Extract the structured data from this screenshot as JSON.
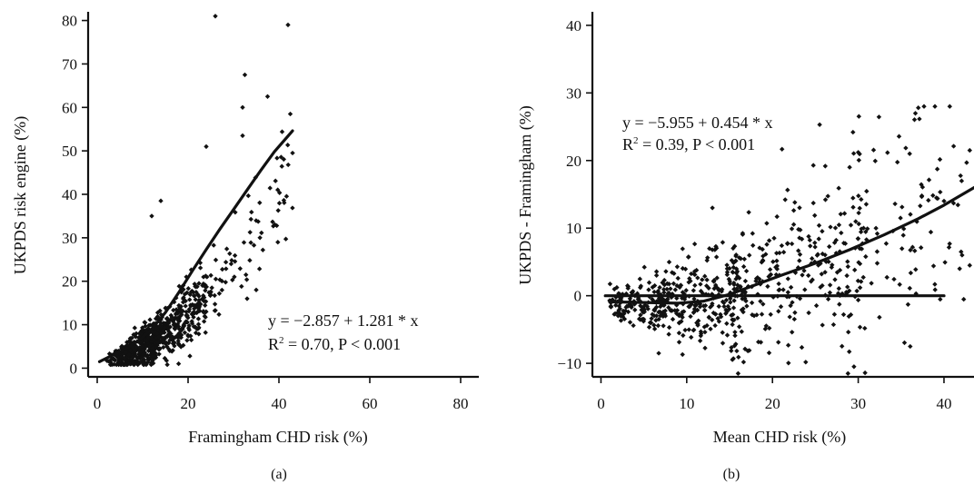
{
  "chart_data": [
    {
      "type": "scatter",
      "panel_label": "(a)",
      "xlabel": "Framingham CHD risk (%)",
      "ylabel": "UKPDS risk engine (%)",
      "xlim": [
        -2,
        84
      ],
      "ylim": [
        -2,
        82
      ],
      "xticks": [
        0,
        20,
        40,
        60,
        80
      ],
      "yticks": [
        0,
        10,
        20,
        30,
        40,
        50,
        60,
        70,
        80
      ],
      "annotation": {
        "line1": "y = −2.857 + 1.281 * x",
        "r2_prefix": "R",
        "r2_sup": "2",
        "r2_rest": " = 0.70, P < 0.001"
      },
      "series": [
        {
          "kind": "points",
          "seed": 7,
          "x_range": [
            0.5,
            43
          ],
          "trend": "smooth",
          "trend_points": [
            [
              0.5,
              1
            ],
            [
              5,
              3.5
            ],
            [
              10,
              8.5
            ],
            [
              15,
              15.5
            ],
            [
              20,
              23
            ],
            [
              25,
              30
            ],
            [
              30,
              37
            ],
            [
              35,
              43
            ],
            [
              40,
              50
            ],
            [
              43,
              54.5
            ]
          ],
          "highlight_points": [
            [
              26,
              81
            ],
            [
              42,
              79
            ],
            [
              32.5,
              67.5
            ],
            [
              37.5,
              62.5
            ],
            [
              32,
              60
            ],
            [
              42.5,
              58.5
            ],
            [
              24,
              51
            ],
            [
              32,
              53.5
            ],
            [
              43,
              49.5
            ],
            [
              33,
              16
            ],
            [
              35,
              18
            ],
            [
              14,
              38.5
            ],
            [
              12,
              35
            ]
          ]
        },
        {
          "kind": "line",
          "points": [
            [
              0.5,
              1.5
            ],
            [
              3,
              2.8
            ],
            [
              6,
              4.2
            ],
            [
              9,
              6.3
            ],
            [
              12,
              9.0
            ],
            [
              15,
              12.8
            ],
            [
              18,
              17.5
            ],
            [
              21,
              22.5
            ],
            [
              24,
              27.3
            ],
            [
              27,
              32.0
            ],
            [
              30,
              36.5
            ],
            [
              33,
              41.0
            ],
            [
              36,
              45.5
            ],
            [
              39,
              49.8
            ],
            [
              43,
              54.6
            ]
          ]
        }
      ]
    },
    {
      "type": "scatter",
      "panel_label": "(b)",
      "xlabel": "Mean CHD risk (%)",
      "ylabel": "UKPDS - Framingham (%)",
      "xlim": [
        -1,
        43.5
      ],
      "ylim": [
        -12,
        42
      ],
      "xticks": [
        0,
        10,
        20,
        30,
        40
      ],
      "yticks": [
        -10,
        0,
        10,
        20,
        30,
        40
      ],
      "yticklabels": [
        "−10",
        "0",
        "10",
        "20",
        "30",
        "40"
      ],
      "annotation": {
        "line1": "y = −5.955 + 0.454 * x",
        "r2_prefix": "R",
        "r2_sup": "2",
        "r2_rest": " = 0.39, P < 0.001"
      },
      "series": [
        {
          "kind": "points",
          "seed": 13,
          "x_range": [
            0.5,
            43
          ],
          "highlight_points": [
            [
              25.5,
              25.3
            ],
            [
              37,
              27.8
            ],
            [
              36,
              21
            ],
            [
              30,
              21.2
            ],
            [
              29,
              19
            ],
            [
              43,
              21.5
            ],
            [
              29.5,
              -10.5
            ],
            [
              28.8,
              -11.5
            ],
            [
              16,
              -11.5
            ],
            [
              42,
              6.5
            ],
            [
              43,
              4.5
            ],
            [
              40,
              14
            ],
            [
              13,
              13
            ]
          ]
        },
        {
          "kind": "line",
          "points": [
            [
              0.5,
              0
            ],
            [
              40,
              0
            ]
          ]
        },
        {
          "kind": "line",
          "points": [
            [
              1,
              -0.9
            ],
            [
              5,
              -1.0
            ],
            [
              9,
              -1.1
            ],
            [
              12,
              -0.8
            ],
            [
              15,
              0.2
            ],
            [
              18,
              1.6
            ],
            [
              21,
              3.0
            ],
            [
              25,
              4.8
            ],
            [
              29,
              6.8
            ],
            [
              33,
              9.0
            ],
            [
              37,
              11.4
            ],
            [
              40,
              13.4
            ],
            [
              43.5,
              16.0
            ]
          ]
        }
      ]
    }
  ]
}
